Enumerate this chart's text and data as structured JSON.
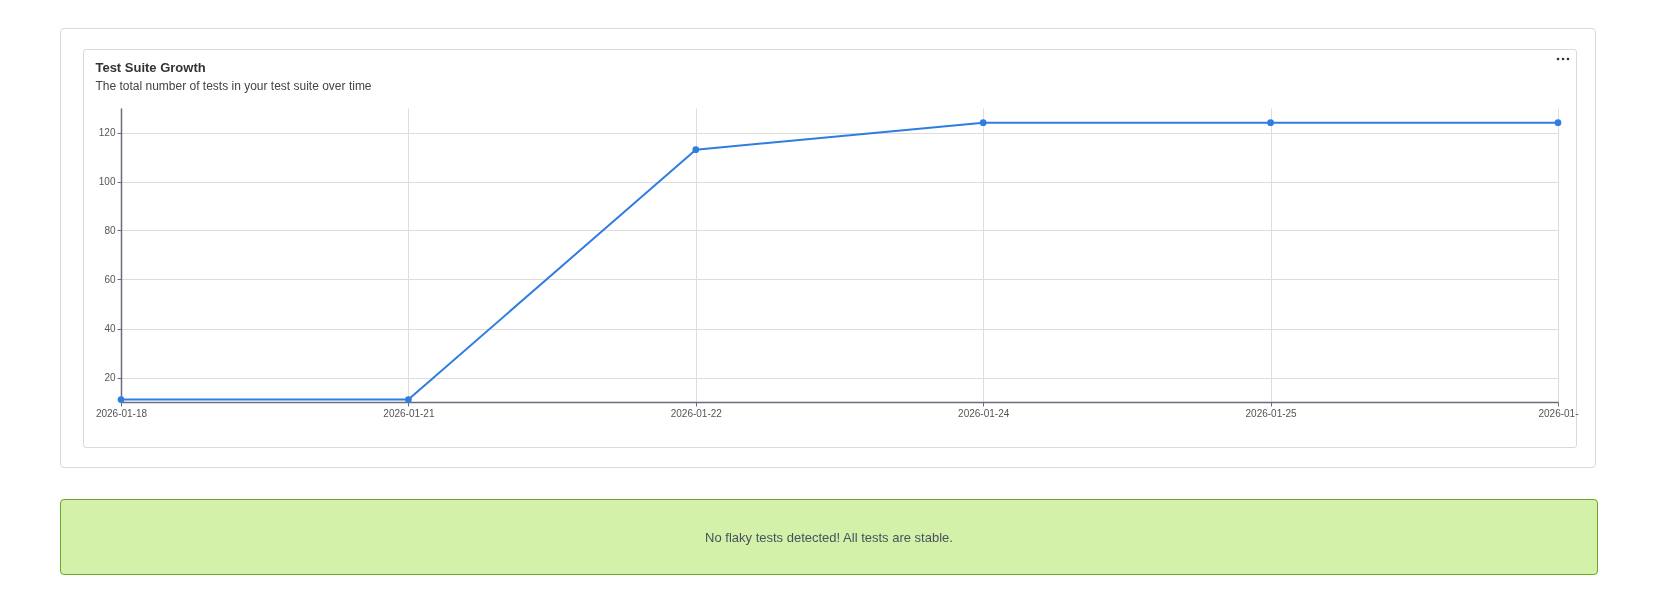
{
  "chart_data": {
    "type": "line",
    "title": "Test Suite Growth",
    "subtitle": "The total number of tests in your test suite over time",
    "categories": [
      "2026-01-18",
      "2026-01-21",
      "2026-01-22",
      "2026-01-24",
      "2026-01-25",
      "2026-01-"
    ],
    "series": [
      {
        "color": "#2f7de1",
        "values": [
          11,
          11,
          113,
          124,
          124,
          124
        ]
      }
    ],
    "ylim": [
      10,
      130
    ],
    "yticks": [
      20,
      40,
      60,
      80,
      100,
      120
    ],
    "grid": true,
    "marker": "circle",
    "line_style": "solid",
    "annotations": [
      "No flaky tests detected! All tests are stable."
    ]
  }
}
